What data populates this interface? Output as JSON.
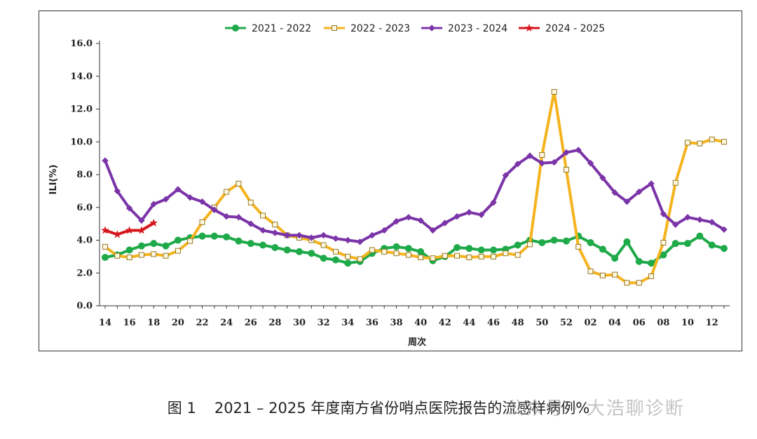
{
  "chart_data": {
    "type": "line",
    "xlabel": "周次",
    "ylabel": "ILI(%)",
    "ylim": [
      0,
      16
    ],
    "yticks": [
      "0.0",
      "2.0",
      "4.0",
      "6.0",
      "8.0",
      "10.0",
      "12.0",
      "14.0",
      "16.0"
    ],
    "xtick_labels": [
      "14",
      "16",
      "18",
      "20",
      "22",
      "24",
      "26",
      "28",
      "30",
      "32",
      "34",
      "36",
      "38",
      "40",
      "42",
      "44",
      "46",
      "48",
      "50",
      "52",
      "02",
      "04",
      "06",
      "08",
      "10",
      "12"
    ],
    "weeks": [
      "14",
      "15",
      "16",
      "17",
      "18",
      "19",
      "20",
      "21",
      "22",
      "23",
      "24",
      "25",
      "26",
      "27",
      "28",
      "29",
      "30",
      "31",
      "32",
      "33",
      "34",
      "35",
      "36",
      "37",
      "38",
      "39",
      "40",
      "41",
      "42",
      "43",
      "44",
      "45",
      "46",
      "47",
      "48",
      "49",
      "50",
      "51",
      "52",
      "01",
      "02",
      "03",
      "04",
      "05",
      "06",
      "07",
      "08",
      "09",
      "10",
      "11",
      "12",
      "13"
    ],
    "legend_position": "top-center",
    "series": [
      {
        "name": "2021 - 2022",
        "color": "#1faa4a",
        "marker": "circle",
        "values": [
          2.95,
          3.1,
          3.4,
          3.65,
          3.8,
          3.65,
          4.0,
          4.15,
          4.25,
          4.25,
          4.2,
          3.95,
          3.8,
          3.7,
          3.55,
          3.4,
          3.3,
          3.2,
          2.9,
          2.8,
          2.6,
          2.7,
          3.2,
          3.5,
          3.6,
          3.5,
          3.3,
          2.75,
          3.0,
          3.55,
          3.5,
          3.4,
          3.4,
          3.45,
          3.7,
          4.0,
          3.85,
          4.0,
          3.95,
          4.25,
          3.85,
          3.45,
          2.9,
          3.9,
          2.7,
          2.6,
          3.1,
          3.8,
          3.8,
          4.25,
          3.7,
          3.5
        ]
      },
      {
        "name": "2022 - 2023",
        "color": "#f5b31e",
        "marker": "square",
        "values": [
          3.6,
          3.05,
          2.95,
          3.1,
          3.15,
          3.05,
          3.35,
          3.95,
          5.1,
          6.0,
          6.95,
          7.45,
          6.3,
          5.5,
          4.95,
          4.3,
          4.15,
          4.0,
          3.7,
          3.3,
          3.0,
          2.85,
          3.4,
          3.3,
          3.2,
          3.1,
          2.95,
          2.9,
          3.05,
          3.05,
          2.95,
          3.0,
          3.0,
          3.2,
          3.1,
          3.75,
          9.2,
          13.05,
          8.3,
          3.6,
          2.1,
          1.85,
          1.9,
          1.4,
          1.4,
          1.8,
          3.85,
          7.5,
          9.95,
          9.9,
          10.15,
          10.0
        ]
      },
      {
        "name": "2023 - 2024",
        "color": "#7b34a8",
        "marker": "diamond",
        "values": [
          8.85,
          7.0,
          5.95,
          5.2,
          6.2,
          6.5,
          7.1,
          6.6,
          6.35,
          5.85,
          5.45,
          5.4,
          5.0,
          4.6,
          4.45,
          4.3,
          4.3,
          4.15,
          4.3,
          4.1,
          4.0,
          3.9,
          4.3,
          4.6,
          5.15,
          5.4,
          5.2,
          4.6,
          5.05,
          5.45,
          5.7,
          5.55,
          6.3,
          7.95,
          8.65,
          9.15,
          8.7,
          8.75,
          9.35,
          9.5,
          8.7,
          7.8,
          6.9,
          6.35,
          6.95,
          7.45,
          5.6,
          4.95,
          5.4,
          5.25,
          5.1,
          4.65
        ]
      },
      {
        "name": "2024 - 2025",
        "color": "#d6171e",
        "marker": "star",
        "values": [
          4.6,
          4.35,
          4.6,
          4.6,
          5.05
        ]
      }
    ]
  },
  "caption": {
    "figure": "图 1",
    "text": "2021 – 2025 年度南方省份哨点医院报告的流感样病例%"
  },
  "watermark": "公众号 · 大浩聊诊断"
}
